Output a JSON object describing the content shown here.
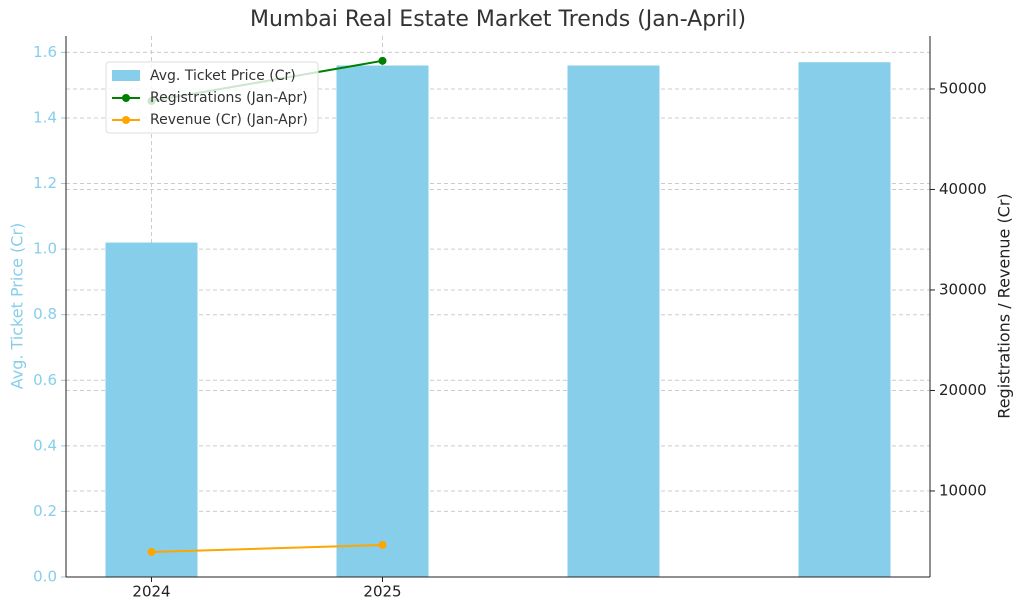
{
  "chart_data": {
    "type": "bar",
    "title": "Mumbai Real Estate Market Trends (Jan-April)",
    "categories": [
      "2024",
      "2025",
      null,
      null
    ],
    "y_label": "Avg. Ticket Price (Cr)",
    "y2_label": "Registrations / Revenue (Cr)",
    "series": [
      {
        "name": "Avg. Ticket Price (Cr)",
        "type": "bar",
        "color": "#87ceeb",
        "values": [
          1.02,
          1.56,
          1.56,
          1.57
        ]
      },
      {
        "name": "Registrations (Jan-Apr)",
        "type": "line",
        "axis": "y2",
        "color": "#008000",
        "values": [
          48800,
          52800,
          null,
          null
        ]
      },
      {
        "name": "Revenue (Cr) (Jan-Apr)",
        "type": "line",
        "axis": "y2",
        "color": "#ffa500",
        "values": [
          3930,
          4630,
          null,
          null
        ]
      }
    ],
    "ylim": [
      0,
      1.65
    ],
    "yticks": [
      {
        "value": 0,
        "label": "0.0"
      },
      0.2,
      0.4,
      0.6,
      0.8,
      {
        "value": 1,
        "label": "1.0"
      },
      1.2,
      1.4,
      1.6
    ],
    "y2lim": [
      1440,
      55270
    ],
    "y2ticks": [
      10000,
      20000,
      30000,
      40000,
      50000
    ],
    "y_axis_color": "#87ceeb",
    "grid": true,
    "legend": "upper left"
  }
}
